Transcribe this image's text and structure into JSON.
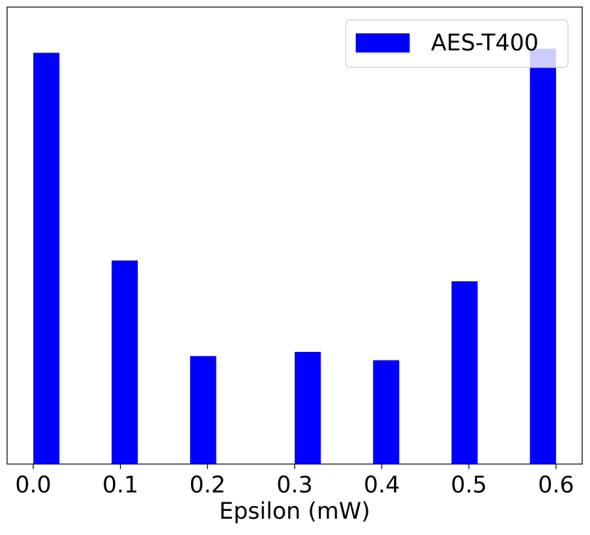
{
  "chart_data": {
    "type": "histogram",
    "x_label": "Epsilon (mW)",
    "bins": [
      0,
      0.03,
      0.06,
      0.09,
      0.12,
      0.15,
      0.18,
      0.21,
      0.24,
      0.27,
      0.3,
      0.33,
      0.36,
      0.39,
      0.42,
      0.45,
      0.48,
      0.51,
      0.54,
      0.57,
      0.6
    ],
    "series": [
      {
        "name": "AES-T400",
        "color": "#0000ff",
        "values": [
          99,
          0,
          0,
          49,
          0,
          0,
          26,
          0,
          0,
          0,
          27,
          0,
          0,
          25,
          0,
          0,
          44,
          0,
          0,
          100
        ]
      }
    ],
    "xlim": [
      -0.03,
      0.63
    ],
    "ylim": [
      0,
      110
    ],
    "xticks": [
      {
        "value": 0,
        "label": "0.0"
      },
      0.1,
      0.2,
      0.3,
      0.4,
      0.5,
      0.6
    ],
    "legend": "upper right"
  }
}
